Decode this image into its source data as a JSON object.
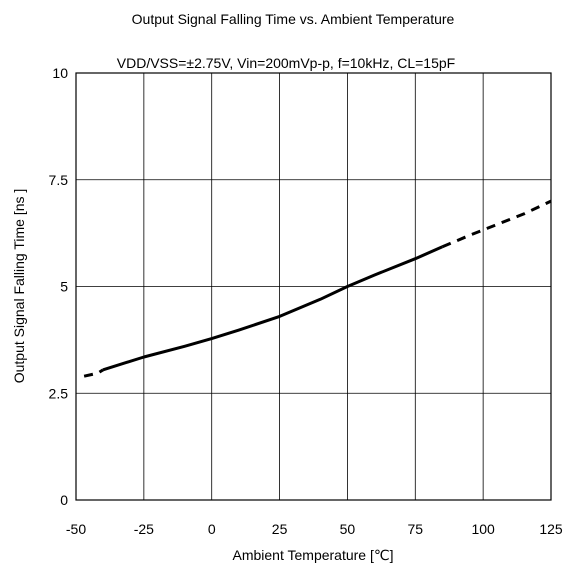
{
  "chart_data": {
    "type": "line",
    "title": "Output Signal Falling Time vs. Ambient Temperature",
    "subtitle": "VDD/VSS=±2.75V, Vin=200mVp-p, f=10kHz, CL=15pF",
    "xlabel": "Ambient Temperature [℃]",
    "ylabel": "Output Signal Falling Time [ns ]",
    "xlim": [
      -50,
      125
    ],
    "ylim": [
      0,
      10
    ],
    "x_ticks": [
      "-50",
      "-25",
      "0",
      "25",
      "50",
      "75",
      "100",
      "125"
    ],
    "y_ticks": [
      "0",
      "2.5",
      "5",
      "7.5",
      "10"
    ],
    "grid": true,
    "series": [
      {
        "style": "solid",
        "x": [
          -40,
          -25,
          -10,
          0,
          10,
          25,
          40,
          50,
          60,
          75,
          85
        ],
        "y": [
          3.05,
          3.35,
          3.6,
          3.78,
          3.98,
          4.3,
          4.7,
          5.0,
          5.27,
          5.65,
          5.93
        ]
      },
      {
        "style": "dashed",
        "x": [
          -47,
          -42,
          -40
        ],
        "y": [
          2.9,
          2.97,
          3.05
        ]
      },
      {
        "style": "dashed",
        "x": [
          85,
          95,
          105,
          115,
          125
        ],
        "y": [
          5.93,
          6.2,
          6.45,
          6.7,
          7.0
        ]
      }
    ]
  }
}
